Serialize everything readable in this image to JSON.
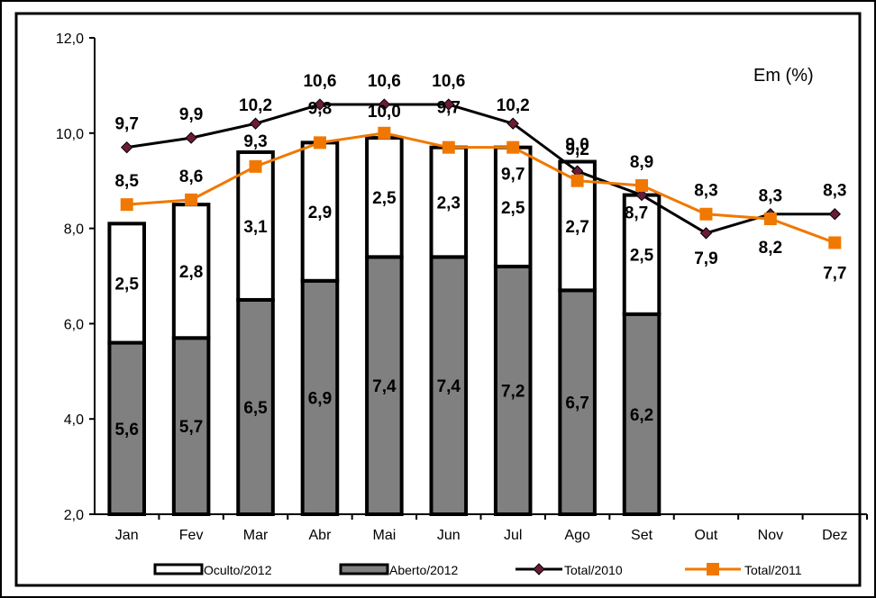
{
  "chart_data": {
    "type": "bar",
    "note": "Em (%)",
    "categories": [
      "Jan",
      "Fev",
      "Mar",
      "Abr",
      "Mai",
      "Jun",
      "Jul",
      "Ago",
      "Set",
      "Out",
      "Nov",
      "Dez"
    ],
    "ylim": [
      2.0,
      12.0
    ],
    "yticks": [
      "2,0",
      "4,0",
      "6,0",
      "8,0",
      "10,0",
      "12,0"
    ],
    "ytick_values": [
      2,
      4,
      6,
      8,
      10,
      12
    ],
    "grid": false,
    "legend_position": "bottom",
    "stacked_bars": [
      {
        "name": "Aberto/2012",
        "color": "#808080",
        "values": [
          5.6,
          5.7,
          6.5,
          6.9,
          7.4,
          7.4,
          7.2,
          6.7,
          6.2,
          null,
          null,
          null
        ],
        "labels": [
          "5,6",
          "5,7",
          "6,5",
          "6,9",
          "7,4",
          "7,4",
          "7,2",
          "6,7",
          "6,2",
          "",
          "",
          ""
        ]
      },
      {
        "name": "Oculto/2012",
        "color": "#ffffff",
        "values": [
          2.5,
          2.8,
          3.1,
          2.9,
          2.5,
          2.3,
          2.5,
          2.7,
          2.5,
          null,
          null,
          null
        ],
        "labels": [
          "2,5",
          "2,8",
          "3,1",
          "2,9",
          "2,5",
          "2,3",
          "2,5",
          "2,7",
          "2,5",
          "",
          "",
          ""
        ]
      }
    ],
    "lines": [
      {
        "name": "Total/2010",
        "color": "#000000",
        "marker_color": "#6a1b3a",
        "marker": "diamond",
        "values": [
          9.7,
          9.9,
          10.2,
          10.6,
          10.6,
          10.6,
          10.2,
          9.2,
          8.7,
          7.9,
          8.3,
          8.3
        ],
        "labels": [
          "9,7",
          "9,9",
          "10,2",
          "10,6",
          "10,6",
          "10,6",
          "10,2",
          "9,2",
          "8,7",
          "7,9",
          "8,3",
          "8,3"
        ]
      },
      {
        "name": "Total/2011",
        "color": "#f07800",
        "marker_color": "#f07800",
        "marker": "square",
        "values": [
          8.5,
          8.6,
          9.3,
          9.8,
          10.0,
          9.7,
          9.7,
          9.0,
          8.9,
          8.3,
          8.2,
          7.7
        ],
        "labels": [
          "8,5",
          "8,6",
          "9,3",
          "9,8",
          "10,0",
          "9,7",
          "9,7",
          "9,0",
          "8,9",
          "8,3",
          "8,2",
          "7,7"
        ]
      }
    ],
    "legend": [
      "Oculto/2012",
      "Aberto/2012",
      "Total/2010",
      "Total/2011"
    ]
  }
}
